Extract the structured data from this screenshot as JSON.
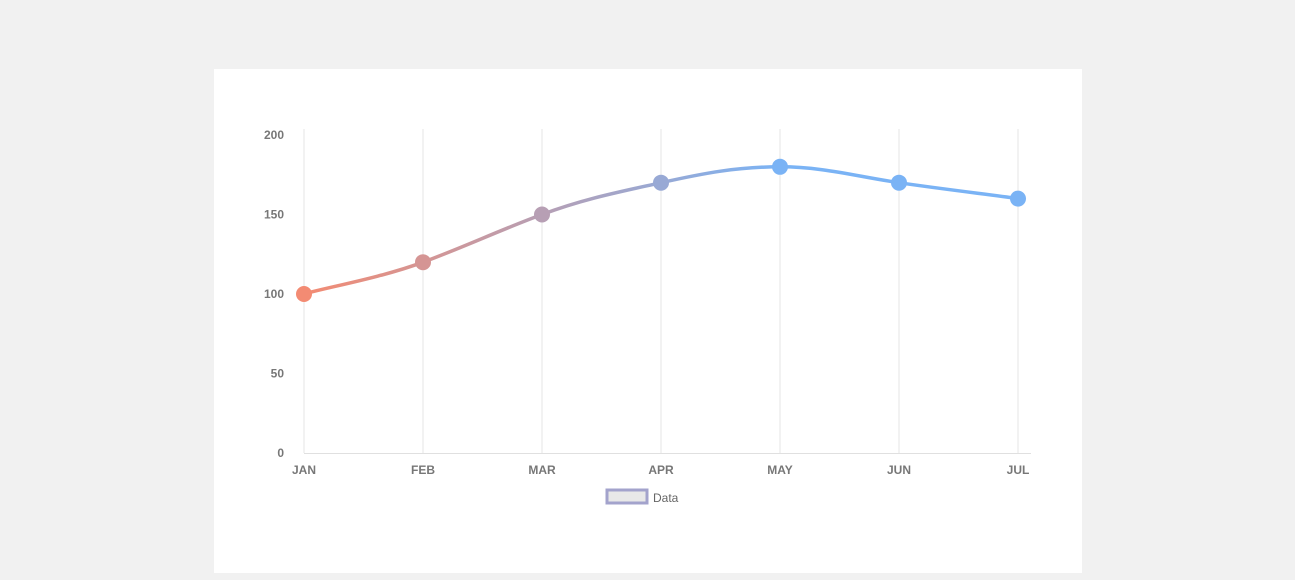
{
  "chart_data": {
    "type": "line",
    "title": "",
    "categories": [
      "JAN",
      "FEB",
      "MAR",
      "APR",
      "MAY",
      "JUN",
      "JUL"
    ],
    "series": [
      {
        "name": "Data",
        "values": [
          100,
          120,
          150,
          170,
          180,
          170,
          160
        ]
      }
    ],
    "ylim": [
      0,
      200
    ],
    "yticks": [
      "0",
      "50",
      "100",
      "150",
      "200"
    ],
    "xlabel": "",
    "ylabel": "",
    "grid": "vertical",
    "legend": "bottom-center",
    "colors": {
      "start": "#f38b73",
      "end": "#7ab3f5",
      "legend_border": "#a3a3cc",
      "legend_fill": "#e8e8e8"
    }
  }
}
